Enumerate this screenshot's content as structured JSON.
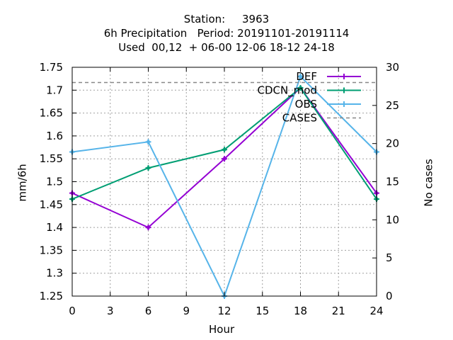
{
  "title_lines": [
    "Station:     3963",
    "6h Precipitation   Period: 20191101-20191114",
    "Used  00,12  + 06-00 12-06 18-12 24-18"
  ],
  "chart_data": {
    "type": "line",
    "xlabel": "Hour",
    "ylabel": "mm/6h",
    "y2label": "No cases",
    "xlim": [
      0,
      24
    ],
    "ylim": [
      1.25,
      1.75
    ],
    "y2lim": [
      0,
      30
    ],
    "x_ticks": [
      "0",
      "3",
      "6",
      "9",
      "12",
      "15",
      "18",
      "21",
      "24"
    ],
    "y_ticks": [
      "1.25",
      "1.3",
      "1.35",
      "1.4",
      "1.45",
      "1.5",
      "1.55",
      "1.6",
      "1.65",
      "1.7",
      "1.75"
    ],
    "y2_ticks": [
      "0",
      "5",
      "10",
      "15",
      "20",
      "25",
      "30"
    ],
    "grid": true,
    "legend_position": "top-right",
    "x": [
      0,
      6,
      12,
      18,
      24
    ],
    "series": [
      {
        "name": "DEF",
        "color": "#9400d3",
        "marker": "plus",
        "values": [
          1.475,
          1.4,
          1.55,
          1.705,
          1.475
        ]
      },
      {
        "name": "CDCN_mod",
        "color": "#009e73",
        "marker": "plus",
        "values": [
          1.462,
          1.53,
          1.57,
          1.705,
          1.462
        ]
      },
      {
        "name": "OBS",
        "color": "#56b4e9",
        "marker": "plus",
        "values": [
          1.565,
          1.587,
          1.25,
          1.73,
          1.565
        ]
      },
      {
        "name": "CASES",
        "color": "#888888",
        "marker": "none",
        "dash": true,
        "axis": "y2",
        "values": [
          28,
          28,
          28,
          28,
          28
        ]
      }
    ]
  }
}
